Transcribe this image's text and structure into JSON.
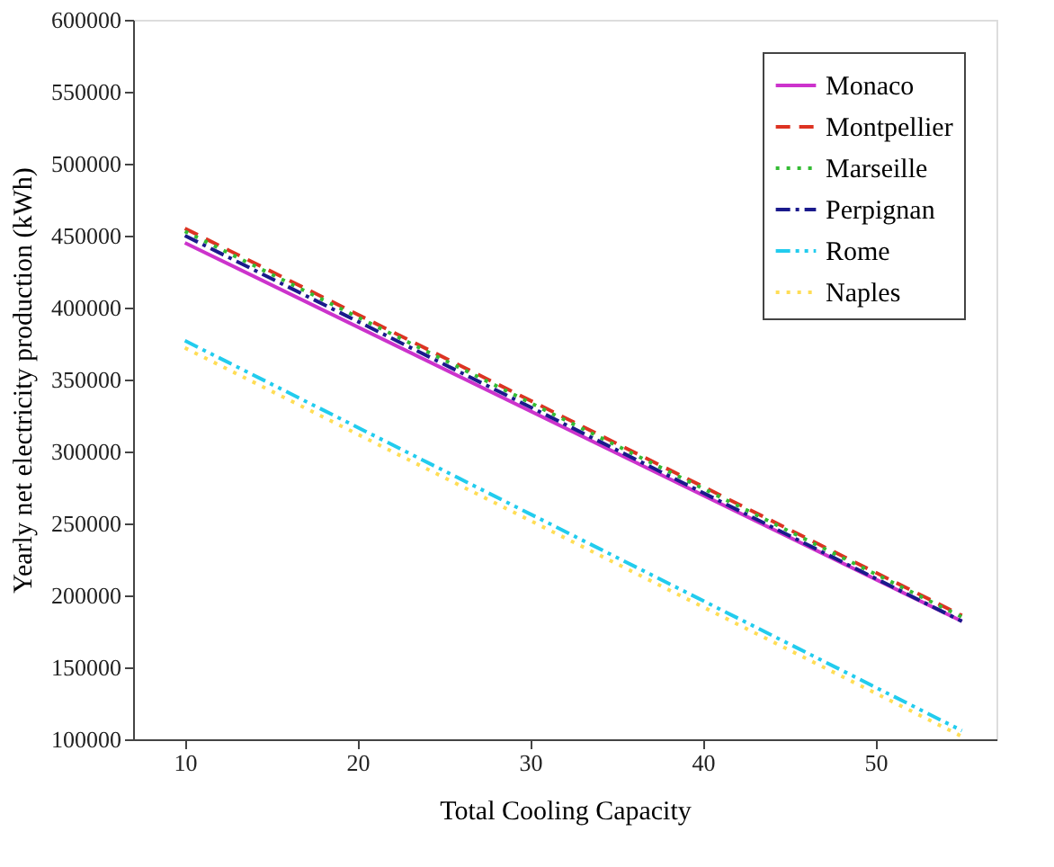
{
  "chart_data": {
    "type": "line",
    "xlabel": "Total Cooling Capacity",
    "ylabel": "Yearly net electricity production (kWh)",
    "x": [
      10,
      55
    ],
    "xlim": [
      7,
      57
    ],
    "xticks": [
      10,
      20,
      30,
      40,
      50
    ],
    "ylim": [
      100000,
      600000
    ],
    "yticks": [
      100000,
      150000,
      200000,
      250000,
      300000,
      350000,
      400000,
      450000,
      500000,
      550000,
      600000
    ],
    "grid": false,
    "legend": "top right",
    "series": [
      {
        "name": "Monaco",
        "color": "#cc33cc",
        "line_style": "solid",
        "values": [
          445000,
          182000
        ]
      },
      {
        "name": "Montpellier",
        "color": "#dd3322",
        "line_style": "dashed",
        "values": [
          455000,
          186000
        ]
      },
      {
        "name": "Marseille",
        "color": "#33bb33",
        "line_style": "dotted",
        "values": [
          453000,
          185000
        ]
      },
      {
        "name": "Perpignan",
        "color": "#1a1a8c",
        "line_style": "dashdot",
        "values": [
          450000,
          182000
        ]
      },
      {
        "name": "Rome",
        "color": "#22ccee",
        "line_style": "dashdotdot",
        "values": [
          377000,
          106000
        ]
      },
      {
        "name": "Naples",
        "color": "#ffdd55",
        "line_style": "dotted",
        "values": [
          372000,
          102000
        ]
      }
    ]
  }
}
